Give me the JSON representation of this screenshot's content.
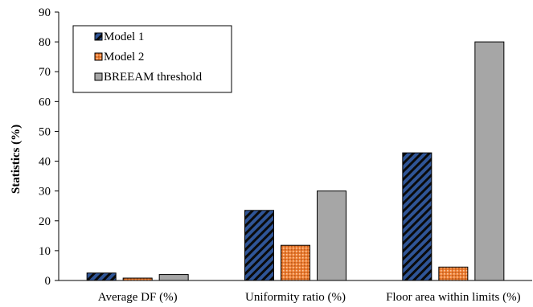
{
  "chart_data": {
    "type": "bar",
    "title": "",
    "xlabel": "",
    "ylabel": "Statistics (%)",
    "ylim": [
      0,
      90
    ],
    "yticks": [
      0,
      10,
      20,
      30,
      40,
      50,
      60,
      70,
      80,
      90
    ],
    "grid": false,
    "legend_position": "top-left",
    "categories": [
      "Average DF (%)",
      "Uniformity ratio (%)",
      "Floor area within limits (%)"
    ],
    "series": [
      {
        "name": "Model 1",
        "values": [
          2.5,
          23.5,
          42.8
        ],
        "color": "#2f5597",
        "pattern": "diagonal-hatch"
      },
      {
        "name": "Model 2",
        "values": [
          0.8,
          11.8,
          4.5
        ],
        "color": "#ed7d31",
        "pattern": "dotted"
      },
      {
        "name": "BREEAM threshold",
        "values": [
          2,
          30,
          80
        ],
        "color": "#a6a6a6",
        "pattern": "solid"
      }
    ]
  }
}
